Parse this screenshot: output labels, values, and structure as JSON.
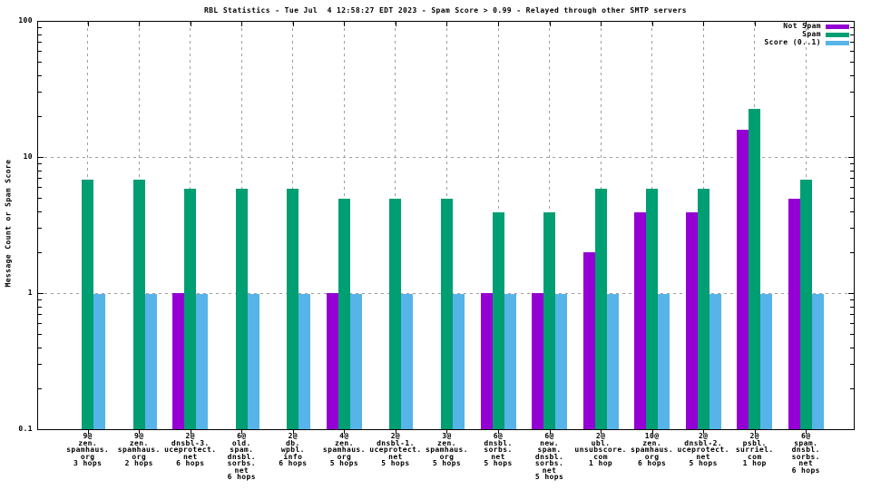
{
  "title": "RBL Statistics - Tue Jul  4 12:58:27 EDT 2023 - Spam Score > 0.99 - Relayed through other SMTP servers",
  "ylabel": "Message Count or Spam Score",
  "legend": [
    {
      "label": "Not Spam",
      "color": "#9400d3"
    },
    {
      "label": "Spam",
      "color": "#009e73"
    },
    {
      "label": "Score (0..1)",
      "color": "#56b4e9"
    }
  ],
  "chart_data": {
    "type": "bar",
    "title": "RBL Statistics - Tue Jul  4 12:58:27 EDT 2023 - Spam Score > 0.99 - Relayed through other SMTP servers",
    "xlabel": "",
    "ylabel": "Message Count or Spam Score",
    "yscale": "log",
    "ylim": [
      0.1,
      100
    ],
    "grid": true,
    "legend_position": "top-right",
    "yticks": [
      {
        "value": 100,
        "label": "100"
      },
      {
        "value": 10,
        "label": "10"
      },
      {
        "value": 1,
        "label": "1"
      },
      {
        "value": 0.1,
        "label": "0.1"
      }
    ],
    "categories": [
      [
        "9@",
        "zen.",
        "spamhaus.",
        "org",
        "3 hops"
      ],
      [
        "9@",
        "zen.",
        "spamhaus.",
        "org",
        "2 hops"
      ],
      [
        "2@",
        "dnsbl-3.",
        "uceprotect.",
        "net",
        "6 hops"
      ],
      [
        "6@",
        "old.",
        "spam.",
        "dnsbl.",
        "sorbs.",
        "net",
        "6 hops"
      ],
      [
        "2@",
        "db.",
        "wpbl.",
        "info",
        "6 hops"
      ],
      [
        "4@",
        "zen.",
        "spamhaus.",
        "org",
        "5 hops"
      ],
      [
        "2@",
        "dnsbl-1.",
        "uceprotect.",
        "net",
        "5 hops"
      ],
      [
        "3@",
        "zen.",
        "spamhaus.",
        "org",
        "5 hops"
      ],
      [
        "6@",
        "dnsbl.",
        "sorbs.",
        "net",
        "5 hops"
      ],
      [
        "6@",
        "new.",
        "spam.",
        "dnsbl.",
        "sorbs.",
        "net",
        "5 hops"
      ],
      [
        "2@",
        "ubl.",
        "unsubscore.",
        "com",
        "1 hop"
      ],
      [
        "10@",
        "zen.",
        "spamhaus.",
        "org",
        "6 hops"
      ],
      [
        "2@",
        "dnsbl-2.",
        "uceprotect.",
        "net",
        "5 hops"
      ],
      [
        "2@",
        "psbl.",
        "surriel.",
        "com",
        "1 hop"
      ],
      [
        "6@",
        "spam.",
        "dnsbl.",
        "sorbs.",
        "net",
        "6 hops"
      ]
    ],
    "series": [
      {
        "name": "Not Spam",
        "color": "#9400d3",
        "values": [
          null,
          null,
          1,
          null,
          null,
          1,
          null,
          null,
          1,
          1,
          2,
          3.9,
          3.9,
          15.8,
          4.9
        ]
      },
      {
        "name": "Spam",
        "color": "#009e73",
        "values": [
          6.8,
          6.8,
          5.8,
          5.8,
          5.8,
          4.9,
          4.9,
          4.9,
          3.9,
          3.9,
          5.8,
          5.8,
          5.8,
          22.5,
          6.8
        ]
      },
      {
        "name": "Score (0..1)",
        "color": "#56b4e9",
        "values": [
          0.99,
          0.99,
          0.99,
          0.99,
          0.99,
          0.99,
          0.99,
          0.99,
          0.99,
          0.99,
          0.99,
          0.99,
          0.99,
          0.99,
          0.99
        ]
      }
    ]
  }
}
